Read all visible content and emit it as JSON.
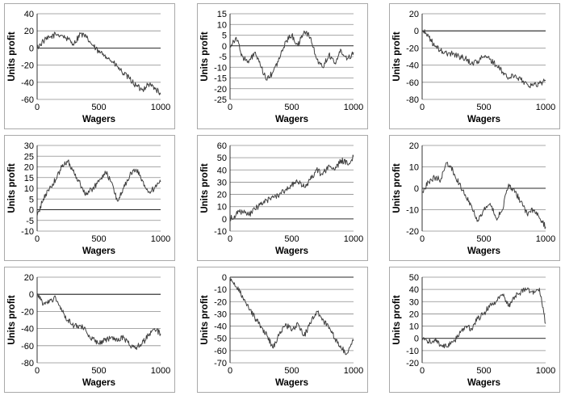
{
  "chart_data": [
    {
      "type": "line",
      "xlabel": "Wagers",
      "ylabel": "Units profit",
      "ylim": [
        -60,
        40
      ],
      "yticks": [
        40,
        20,
        0,
        -20,
        -40,
        -60
      ],
      "xlim": [
        0,
        1000
      ],
      "xticks": [
        0,
        500,
        1000
      ],
      "grid": "horizontal",
      "series": [
        {
          "x": [
            0,
            50,
            100,
            150,
            200,
            250,
            300,
            350,
            400,
            450,
            500,
            550,
            600,
            650,
            700,
            750,
            800,
            850,
            900,
            950,
            1000
          ],
          "values": [
            0,
            8,
            12,
            16,
            15,
            10,
            5,
            17,
            12,
            3,
            -5,
            -8,
            -15,
            -22,
            -30,
            -36,
            -44,
            -49,
            -42,
            -46,
            -54
          ]
        }
      ]
    },
    {
      "type": "line",
      "xlabel": "Wagers",
      "ylabel": "Units profit",
      "ylim": [
        -25,
        15
      ],
      "yticks": [
        15,
        10,
        5,
        0,
        -5,
        -10,
        -15,
        -20,
        -25
      ],
      "xlim": [
        0,
        1000
      ],
      "xticks": [
        0,
        500,
        1000
      ],
      "grid": "horizontal",
      "series": [
        {
          "x": [
            0,
            50,
            100,
            150,
            200,
            250,
            300,
            350,
            400,
            450,
            500,
            550,
            600,
            650,
            700,
            750,
            800,
            850,
            900,
            950,
            1000
          ],
          "values": [
            0,
            4,
            -5,
            -8,
            -3,
            -10,
            -16,
            -12,
            -6,
            2,
            5,
            0,
            7,
            4,
            -6,
            -10,
            -4,
            -8,
            -2,
            -6,
            -3
          ]
        }
      ]
    },
    {
      "type": "line",
      "xlabel": "Wagers",
      "ylabel": "Units profit",
      "ylim": [
        -80,
        20
      ],
      "yticks": [
        20,
        0,
        -20,
        -40,
        -60,
        -80
      ],
      "xlim": [
        0,
        1000
      ],
      "xticks": [
        0,
        500,
        1000
      ],
      "grid": "horizontal",
      "series": [
        {
          "x": [
            0,
            50,
            100,
            150,
            200,
            250,
            300,
            350,
            400,
            450,
            500,
            550,
            600,
            650,
            700,
            750,
            800,
            850,
            900,
            950,
            1000
          ],
          "values": [
            0,
            -5,
            -18,
            -23,
            -27,
            -26,
            -30,
            -32,
            -38,
            -35,
            -30,
            -33,
            -40,
            -48,
            -55,
            -52,
            -57,
            -62,
            -64,
            -61,
            -58
          ]
        }
      ]
    },
    {
      "type": "line",
      "xlabel": "Wagers",
      "ylabel": "Units profit",
      "ylim": [
        -10,
        30
      ],
      "yticks": [
        30,
        25,
        20,
        15,
        10,
        5,
        0,
        -5,
        -10
      ],
      "xlim": [
        0,
        1000
      ],
      "xticks": [
        0,
        500,
        1000
      ],
      "grid": "horizontal",
      "series": [
        {
          "x": [
            0,
            50,
            100,
            150,
            200,
            250,
            300,
            350,
            400,
            450,
            500,
            550,
            600,
            650,
            700,
            750,
            800,
            850,
            900,
            950,
            1000
          ],
          "values": [
            -3,
            5,
            10,
            14,
            20,
            23,
            17,
            12,
            7,
            10,
            13,
            18,
            13,
            4,
            10,
            16,
            19,
            14,
            8,
            10,
            13
          ]
        }
      ]
    },
    {
      "type": "line",
      "xlabel": "Wagers",
      "ylabel": "Units profit",
      "ylim": [
        -10,
        60
      ],
      "yticks": [
        60,
        50,
        40,
        30,
        20,
        10,
        0,
        -10
      ],
      "xlim": [
        0,
        1000
      ],
      "xticks": [
        0,
        500,
        1000
      ],
      "grid": "horizontal",
      "series": [
        {
          "x": [
            0,
            50,
            100,
            150,
            200,
            250,
            300,
            350,
            400,
            450,
            500,
            550,
            600,
            650,
            700,
            750,
            800,
            850,
            900,
            950,
            1000
          ],
          "values": [
            0,
            4,
            6,
            3,
            8,
            12,
            15,
            18,
            20,
            24,
            28,
            30,
            26,
            32,
            40,
            36,
            44,
            40,
            48,
            45,
            51
          ]
        }
      ]
    },
    {
      "type": "line",
      "xlabel": "Wagers",
      "ylabel": "Units profit",
      "ylim": [
        -20,
        20
      ],
      "yticks": [
        20,
        10,
        0,
        -10,
        -20
      ],
      "xlim": [
        0,
        1000
      ],
      "xticks": [
        0,
        500,
        1000
      ],
      "grid": "horizontal",
      "series": [
        {
          "x": [
            0,
            50,
            100,
            150,
            200,
            250,
            300,
            350,
            400,
            450,
            500,
            550,
            600,
            650,
            700,
            750,
            800,
            850,
            900,
            950,
            1000
          ],
          "values": [
            -2,
            3,
            5,
            4,
            12,
            8,
            2,
            -3,
            -8,
            -15,
            -10,
            -7,
            -14,
            -10,
            2,
            -2,
            -6,
            -12,
            -10,
            -14,
            -18
          ]
        }
      ]
    },
    {
      "type": "line",
      "xlabel": "Wagers",
      "ylabel": "Units profit",
      "ylim": [
        -80,
        20
      ],
      "yticks": [
        20,
        0,
        -20,
        -40,
        -60,
        -80
      ],
      "xlim": [
        0,
        1000
      ],
      "xticks": [
        0,
        500,
        1000
      ],
      "grid": "horizontal",
      "series": [
        {
          "x": [
            0,
            50,
            100,
            150,
            200,
            250,
            300,
            350,
            400,
            450,
            500,
            550,
            600,
            650,
            700,
            750,
            800,
            850,
            900,
            950,
            1000
          ],
          "values": [
            0,
            -12,
            -8,
            -4,
            -20,
            -30,
            -37,
            -36,
            -44,
            -52,
            -58,
            -54,
            -50,
            -55,
            -50,
            -60,
            -62,
            -58,
            -48,
            -40,
            -46
          ]
        }
      ]
    },
    {
      "type": "line",
      "xlabel": "Wagers",
      "ylabel": "Units profit",
      "ylim": [
        -70,
        0
      ],
      "yticks": [
        0,
        -10,
        -20,
        -30,
        -40,
        -50,
        -60,
        -70
      ],
      "xlim": [
        0,
        1000
      ],
      "xticks": [
        0,
        500,
        1000
      ],
      "grid": "horizontal",
      "series": [
        {
          "x": [
            0,
            50,
            100,
            150,
            200,
            250,
            300,
            350,
            400,
            450,
            500,
            550,
            600,
            650,
            700,
            750,
            800,
            850,
            900,
            950,
            1000
          ],
          "values": [
            0,
            -8,
            -15,
            -25,
            -33,
            -40,
            -48,
            -58,
            -46,
            -38,
            -44,
            -38,
            -48,
            -38,
            -28,
            -34,
            -42,
            -50,
            -58,
            -62,
            -52
          ]
        }
      ]
    },
    {
      "type": "line",
      "xlabel": "Wagers",
      "ylabel": "Units profit",
      "ylim": [
        -20,
        50
      ],
      "yticks": [
        50,
        40,
        30,
        20,
        10,
        0,
        -10,
        -20
      ],
      "xlim": [
        0,
        1000
      ],
      "xticks": [
        0,
        500,
        1000
      ],
      "grid": "horizontal",
      "series": [
        {
          "x": [
            0,
            50,
            100,
            150,
            200,
            250,
            300,
            350,
            400,
            450,
            500,
            550,
            600,
            650,
            700,
            750,
            800,
            850,
            900,
            950,
            1000
          ],
          "values": [
            0,
            -3,
            -1,
            -5,
            -7,
            -3,
            3,
            10,
            8,
            16,
            20,
            28,
            30,
            36,
            26,
            34,
            38,
            40,
            36,
            41,
            12
          ]
        }
      ]
    }
  ]
}
